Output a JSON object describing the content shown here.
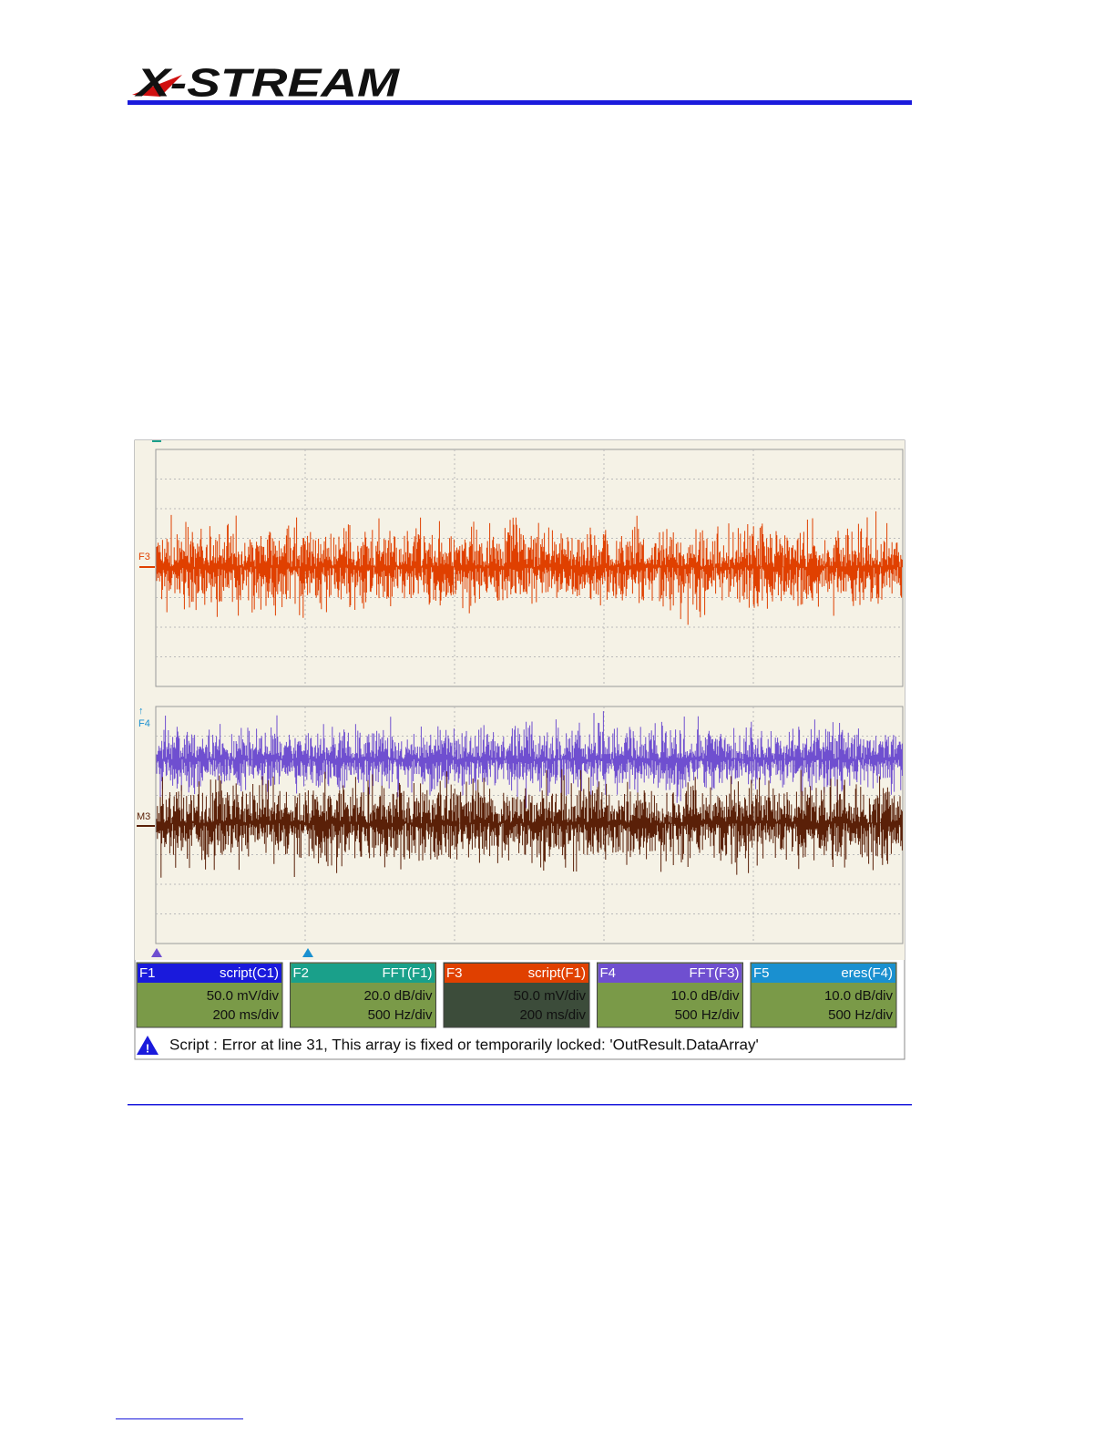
{
  "header": {
    "logo": "X-STREAM"
  },
  "scope": {
    "trace_labels": [
      "F3",
      "F4",
      "M3"
    ],
    "descriptors": [
      {
        "id": "F1",
        "function": "script(C1)",
        "vertical": "50.0 mV/div",
        "horizontal": "200 ms/div"
      },
      {
        "id": "F2",
        "function": "FFT(F1)",
        "vertical": "20.0 dB/div",
        "horizontal": "500 Hz/div"
      },
      {
        "id": "F3",
        "function": "script(F1)",
        "vertical": "50.0 mV/div",
        "horizontal": "200 ms/div"
      },
      {
        "id": "F4",
        "function": "FFT(F3)",
        "vertical": "10.0 dB/div",
        "horizontal": "500 Hz/div"
      },
      {
        "id": "F5",
        "function": "eres(F4)",
        "vertical": "10.0 dB/div",
        "horizontal": "500 Hz/div"
      }
    ],
    "message": "Script : Error at line 31, This array is fixed or temporarily locked: 'OutResult.DataArray'"
  }
}
